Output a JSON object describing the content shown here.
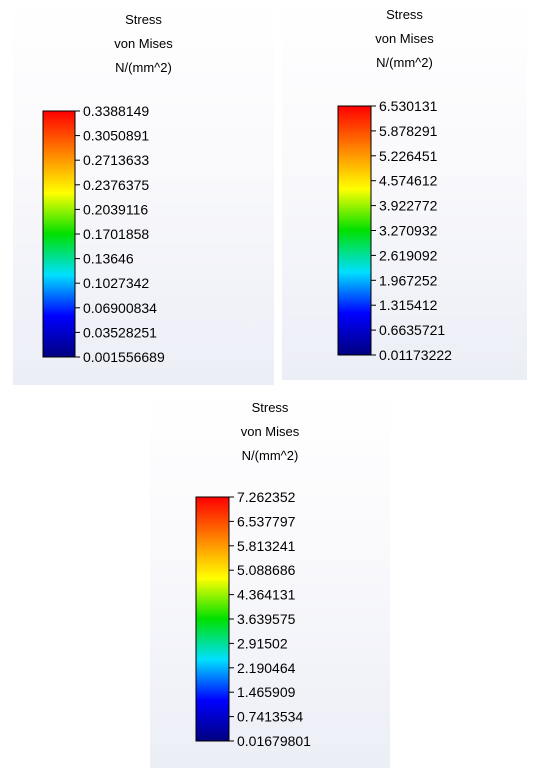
{
  "chart_data": [
    {
      "type": "colorbar",
      "title_lines": [
        "Stress",
        "von Mises",
        "N/(mm^2)"
      ],
      "ticks": [
        0.3388149,
        0.3050891,
        0.2713633,
        0.2376375,
        0.2039116,
        0.1701858,
        0.13646,
        0.1027342,
        0.06900834,
        0.03528251,
        0.001556689
      ],
      "tick_labels": [
        "0.3388149",
        "0.3050891",
        "0.2713633",
        "0.2376375",
        "0.2039116",
        "0.1701858",
        "0.13646",
        "0.1027342",
        "0.06900834",
        "0.03528251",
        "0.001556689"
      ],
      "range": [
        0.001556689,
        0.3388149
      ]
    },
    {
      "type": "colorbar",
      "title_lines": [
        "Stress",
        "von Mises",
        "N/(mm^2)"
      ],
      "ticks": [
        6.530131,
        5.878291,
        5.226451,
        4.574612,
        3.922772,
        3.270932,
        2.619092,
        1.967252,
        1.315412,
        0.6635721,
        0.01173222
      ],
      "tick_labels": [
        "6.530131",
        "5.878291",
        "5.226451",
        "4.574612",
        "3.922772",
        "3.270932",
        "2.619092",
        "1.967252",
        "1.315412",
        "0.6635721",
        "0.01173222"
      ],
      "range": [
        0.01173222,
        6.530131
      ]
    },
    {
      "type": "colorbar",
      "title_lines": [
        "Stress",
        "von Mises",
        "N/(mm^2)"
      ],
      "ticks": [
        7.262352,
        6.537797,
        5.813241,
        5.088686,
        4.364131,
        3.639575,
        2.91502,
        2.190464,
        1.465909,
        0.7413534,
        0.01679801
      ],
      "tick_labels": [
        "7.262352",
        "6.537797",
        "5.813241",
        "5.088686",
        "4.364131",
        "3.639575",
        "2.91502",
        "2.190464",
        "1.465909",
        "0.7413534",
        "0.01679801"
      ],
      "range": [
        0.01679801,
        7.262352
      ]
    }
  ],
  "colormap": {
    "name": "rainbow",
    "stops": [
      "#ff0000",
      "#ff8000",
      "#ffff00",
      "#00e000",
      "#00e0ff",
      "#0000ff",
      "#00007f"
    ]
  }
}
